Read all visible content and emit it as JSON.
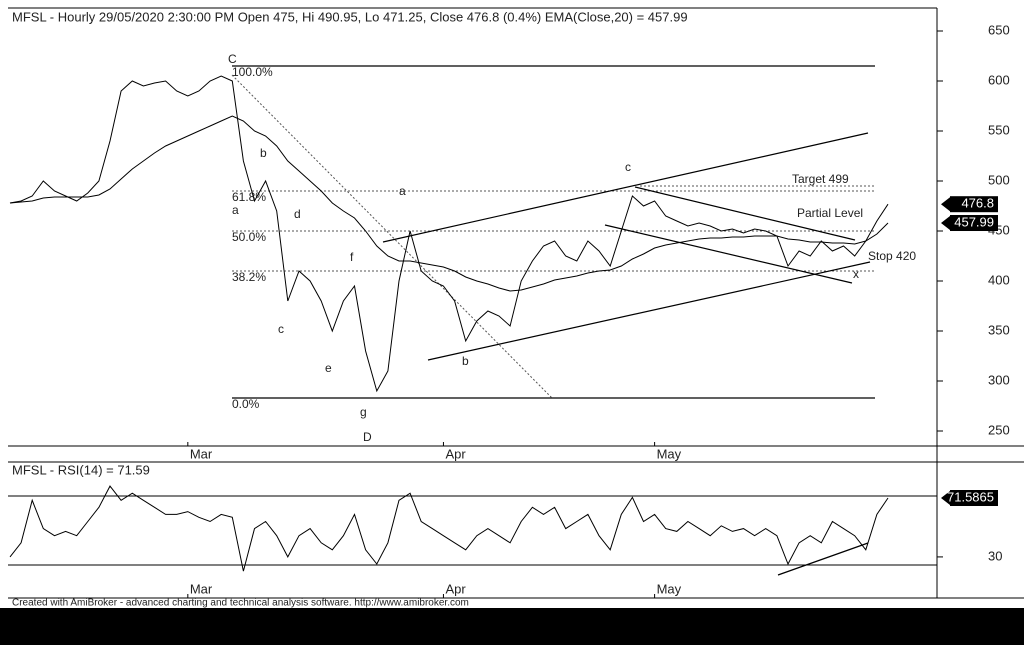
{
  "chart_data": [
    {
      "type": "line",
      "title": "MFSL - Hourly 29/05/2020 2:30:00 PM Open 475, Hi 490.95, Lo 471.25, Close 476.8 (0.4%) EMA(Close,20) = 457.99",
      "categories": [
        null,
        null,
        null,
        null,
        null,
        null,
        null,
        null,
        null,
        null,
        null,
        null,
        null,
        null,
        null,
        null,
        "Mar",
        null,
        null,
        null,
        null,
        null,
        null,
        null,
        null,
        null,
        null,
        null,
        null,
        null,
        null,
        null,
        null,
        null,
        null,
        null,
        null,
        null,
        null,
        "Apr",
        null,
        null,
        null,
        null,
        null,
        null,
        null,
        null,
        null,
        null,
        null,
        null,
        null,
        null,
        null,
        null,
        null,
        null,
        "May",
        null,
        null,
        null,
        null,
        null,
        null,
        null,
        null,
        null,
        null,
        null,
        null,
        null,
        null,
        null,
        null,
        null,
        null,
        null,
        null,
        null
      ],
      "series": [
        {
          "color": "#000000",
          "values": [
            478,
            480,
            485,
            500,
            490,
            485,
            480,
            488,
            500,
            540,
            590,
            600,
            595,
            598,
            600,
            590,
            585,
            590,
            600,
            605,
            600,
            520,
            480,
            500,
            470,
            380,
            410,
            400,
            380,
            350,
            380,
            395,
            330,
            290,
            310,
            400,
            450,
            410,
            400,
            395,
            380,
            340,
            360,
            370,
            365,
            355,
            400,
            420,
            435,
            440,
            425,
            420,
            440,
            430,
            415,
            450,
            485,
            475,
            480,
            465,
            460,
            455,
            458,
            455,
            450,
            452,
            448,
            452,
            450,
            445,
            415,
            430,
            425,
            440,
            430,
            435,
            425,
            440,
            460,
            476.8
          ]
        },
        {
          "color": "#000000",
          "values": [
            478,
            479,
            480,
            483,
            484,
            484,
            484,
            484,
            486,
            492,
            502,
            512,
            520,
            528,
            535,
            540,
            545,
            550,
            555,
            560,
            565,
            560,
            550,
            545,
            535,
            520,
            510,
            500,
            490,
            478,
            470,
            463,
            450,
            435,
            425,
            420,
            420,
            418,
            416,
            414,
            410,
            404,
            400,
            397,
            393,
            390,
            391,
            394,
            397,
            401,
            403,
            405,
            408,
            410,
            411,
            415,
            422,
            427,
            433,
            436,
            438,
            440,
            442,
            443,
            443,
            444,
            444,
            445,
            445,
            445,
            442,
            441,
            439,
            439,
            438,
            438,
            437,
            440,
            447,
            457.99
          ]
        }
      ],
      "ylim": [
        235,
        673
      ],
      "yticks": [
        250,
        300,
        350,
        400,
        450,
        500,
        550,
        600,
        650
      ],
      "annotations": [
        "C",
        "100.0%",
        "b",
        "61.8%",
        "a",
        "d",
        "50.0%",
        "38.2%",
        "c",
        "e",
        "f",
        "g",
        "0.0%",
        "D",
        "a",
        "b",
        "c",
        "Target 499",
        "Partial Level",
        "Stop 420",
        "x"
      ]
    },
    {
      "type": "line",
      "title": "MFSL - RSI(14) = 71.59",
      "categories": [
        null,
        null,
        null,
        null,
        null,
        null,
        null,
        null,
        null,
        null,
        null,
        null,
        null,
        null,
        null,
        null,
        "Mar",
        null,
        null,
        null,
        null,
        null,
        null,
        null,
        null,
        null,
        null,
        null,
        null,
        null,
        null,
        null,
        null,
        null,
        null,
        null,
        null,
        null,
        null,
        "Apr",
        null,
        null,
        null,
        null,
        null,
        null,
        null,
        null,
        null,
        null,
        null,
        null,
        null,
        null,
        null,
        null,
        null,
        null,
        "May",
        null,
        null,
        null,
        null,
        null,
        null,
        null,
        null,
        null,
        null,
        null,
        null,
        null,
        null,
        null,
        null,
        null,
        null,
        null,
        null,
        null
      ],
      "series": [
        {
          "color": "#000000",
          "values": [
            30,
            40,
            70,
            50,
            45,
            48,
            45,
            55,
            65,
            80,
            70,
            75,
            70,
            65,
            60,
            60,
            62,
            58,
            55,
            60,
            58,
            20,
            50,
            55,
            45,
            30,
            45,
            50,
            40,
            35,
            45,
            60,
            35,
            25,
            40,
            70,
            75,
            55,
            50,
            45,
            40,
            35,
            45,
            50,
            45,
            40,
            55,
            65,
            60,
            65,
            50,
            55,
            60,
            45,
            35,
            60,
            72,
            55,
            60,
            50,
            48,
            55,
            50,
            45,
            52,
            48,
            50,
            45,
            50,
            45,
            25,
            40,
            45,
            40,
            55,
            50,
            45,
            35,
            60,
            71.5865
          ]
        }
      ],
      "ylim": [
        1,
        97
      ],
      "yticks": [
        30
      ]
    }
  ],
  "footer": "Created with AmiBroker - advanced charting and technical analysis software. http://www.amibroker.com"
}
